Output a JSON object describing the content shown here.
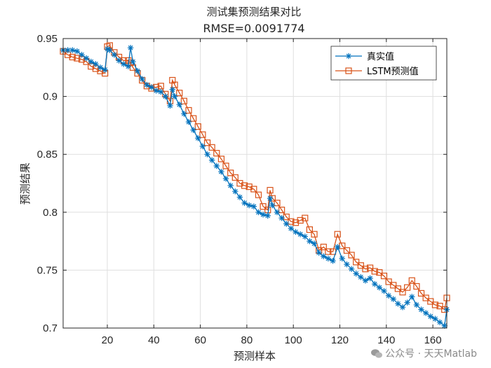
{
  "chart_data": {
    "type": "line",
    "title": "测试集预测结果对比",
    "subtitle": "RMSE=0.0091774",
    "xlabel": "预测样本",
    "ylabel": "预测结果",
    "xlim": [
      1,
      166
    ],
    "ylim": [
      0.7,
      0.95
    ],
    "xticks": [
      20,
      40,
      60,
      80,
      100,
      120,
      140,
      160
    ],
    "yticks": [
      0.7,
      0.75,
      0.8,
      0.85,
      0.9,
      0.95
    ],
    "ytick_labels": [
      "0.7",
      "0.75",
      "0.8",
      "0.85",
      "0.9",
      "0.95"
    ],
    "grid": true,
    "legend_position": "top-right",
    "colors": {
      "true": "#0072BD",
      "pred": "#D95319"
    },
    "series": [
      {
        "name": "真实值",
        "marker": "asterisk",
        "x": [
          1,
          3,
          5,
          7,
          9,
          11,
          13,
          15,
          17,
          19,
          20,
          21,
          23,
          25,
          27,
          29,
          30,
          31,
          33,
          35,
          37,
          39,
          41,
          43,
          45,
          47,
          48,
          49,
          51,
          53,
          55,
          57,
          59,
          61,
          63,
          65,
          67,
          69,
          71,
          73,
          75,
          77,
          79,
          81,
          83,
          85,
          87,
          89,
          90,
          91,
          93,
          95,
          97,
          99,
          101,
          103,
          105,
          107,
          109,
          111,
          113,
          115,
          117,
          119,
          121,
          123,
          125,
          127,
          129,
          131,
          133,
          135,
          137,
          139,
          141,
          143,
          145,
          147,
          149,
          151,
          153,
          155,
          157,
          159,
          161,
          163,
          165,
          166
        ],
        "values": [
          0.94,
          0.94,
          0.94,
          0.939,
          0.936,
          0.933,
          0.93,
          0.928,
          0.925,
          0.923,
          0.941,
          0.94,
          0.936,
          0.931,
          0.928,
          0.926,
          0.942,
          0.93,
          0.922,
          0.915,
          0.91,
          0.908,
          0.905,
          0.904,
          0.9,
          0.892,
          0.906,
          0.9,
          0.893,
          0.885,
          0.878,
          0.871,
          0.864,
          0.857,
          0.85,
          0.845,
          0.84,
          0.835,
          0.829,
          0.823,
          0.818,
          0.813,
          0.808,
          0.806,
          0.805,
          0.8,
          0.798,
          0.797,
          0.812,
          0.806,
          0.8,
          0.795,
          0.79,
          0.786,
          0.783,
          0.781,
          0.779,
          0.775,
          0.773,
          0.765,
          0.762,
          0.76,
          0.758,
          0.77,
          0.76,
          0.755,
          0.751,
          0.747,
          0.744,
          0.741,
          0.743,
          0.738,
          0.735,
          0.732,
          0.728,
          0.725,
          0.721,
          0.718,
          0.722,
          0.727,
          0.72,
          0.716,
          0.713,
          0.71,
          0.708,
          0.705,
          0.702,
          0.716
        ]
      },
      {
        "name": "LSTM预测值",
        "marker": "square",
        "x": [
          1,
          3,
          5,
          7,
          9,
          11,
          13,
          15,
          17,
          19,
          20,
          21,
          23,
          25,
          27,
          29,
          30,
          31,
          33,
          35,
          37,
          39,
          41,
          43,
          45,
          47,
          48,
          49,
          51,
          53,
          55,
          57,
          59,
          61,
          63,
          65,
          67,
          69,
          71,
          73,
          75,
          77,
          79,
          81,
          83,
          85,
          87,
          89,
          90,
          91,
          93,
          95,
          97,
          99,
          101,
          103,
          105,
          107,
          109,
          111,
          113,
          115,
          117,
          119,
          121,
          123,
          125,
          127,
          129,
          131,
          133,
          135,
          137,
          139,
          141,
          143,
          145,
          147,
          149,
          151,
          153,
          155,
          157,
          159,
          161,
          163,
          165,
          166
        ],
        "values": [
          0.939,
          0.936,
          0.934,
          0.933,
          0.932,
          0.93,
          0.926,
          0.924,
          0.922,
          0.92,
          0.943,
          0.944,
          0.938,
          0.934,
          0.931,
          0.931,
          0.929,
          0.925,
          0.92,
          0.914,
          0.909,
          0.907,
          0.908,
          0.909,
          0.902,
          0.896,
          0.914,
          0.91,
          0.903,
          0.896,
          0.888,
          0.881,
          0.874,
          0.867,
          0.86,
          0.856,
          0.851,
          0.846,
          0.84,
          0.834,
          0.83,
          0.825,
          0.823,
          0.822,
          0.82,
          0.815,
          0.805,
          0.802,
          0.819,
          0.812,
          0.808,
          0.802,
          0.796,
          0.792,
          0.791,
          0.793,
          0.795,
          0.785,
          0.781,
          0.767,
          0.77,
          0.766,
          0.766,
          0.781,
          0.771,
          0.767,
          0.763,
          0.757,
          0.754,
          0.751,
          0.752,
          0.749,
          0.748,
          0.745,
          0.74,
          0.737,
          0.734,
          0.731,
          0.735,
          0.741,
          0.736,
          0.73,
          0.726,
          0.723,
          0.72,
          0.719,
          0.716,
          0.726
        ]
      }
    ]
  },
  "watermark": "公众号 · 天天Matlab"
}
